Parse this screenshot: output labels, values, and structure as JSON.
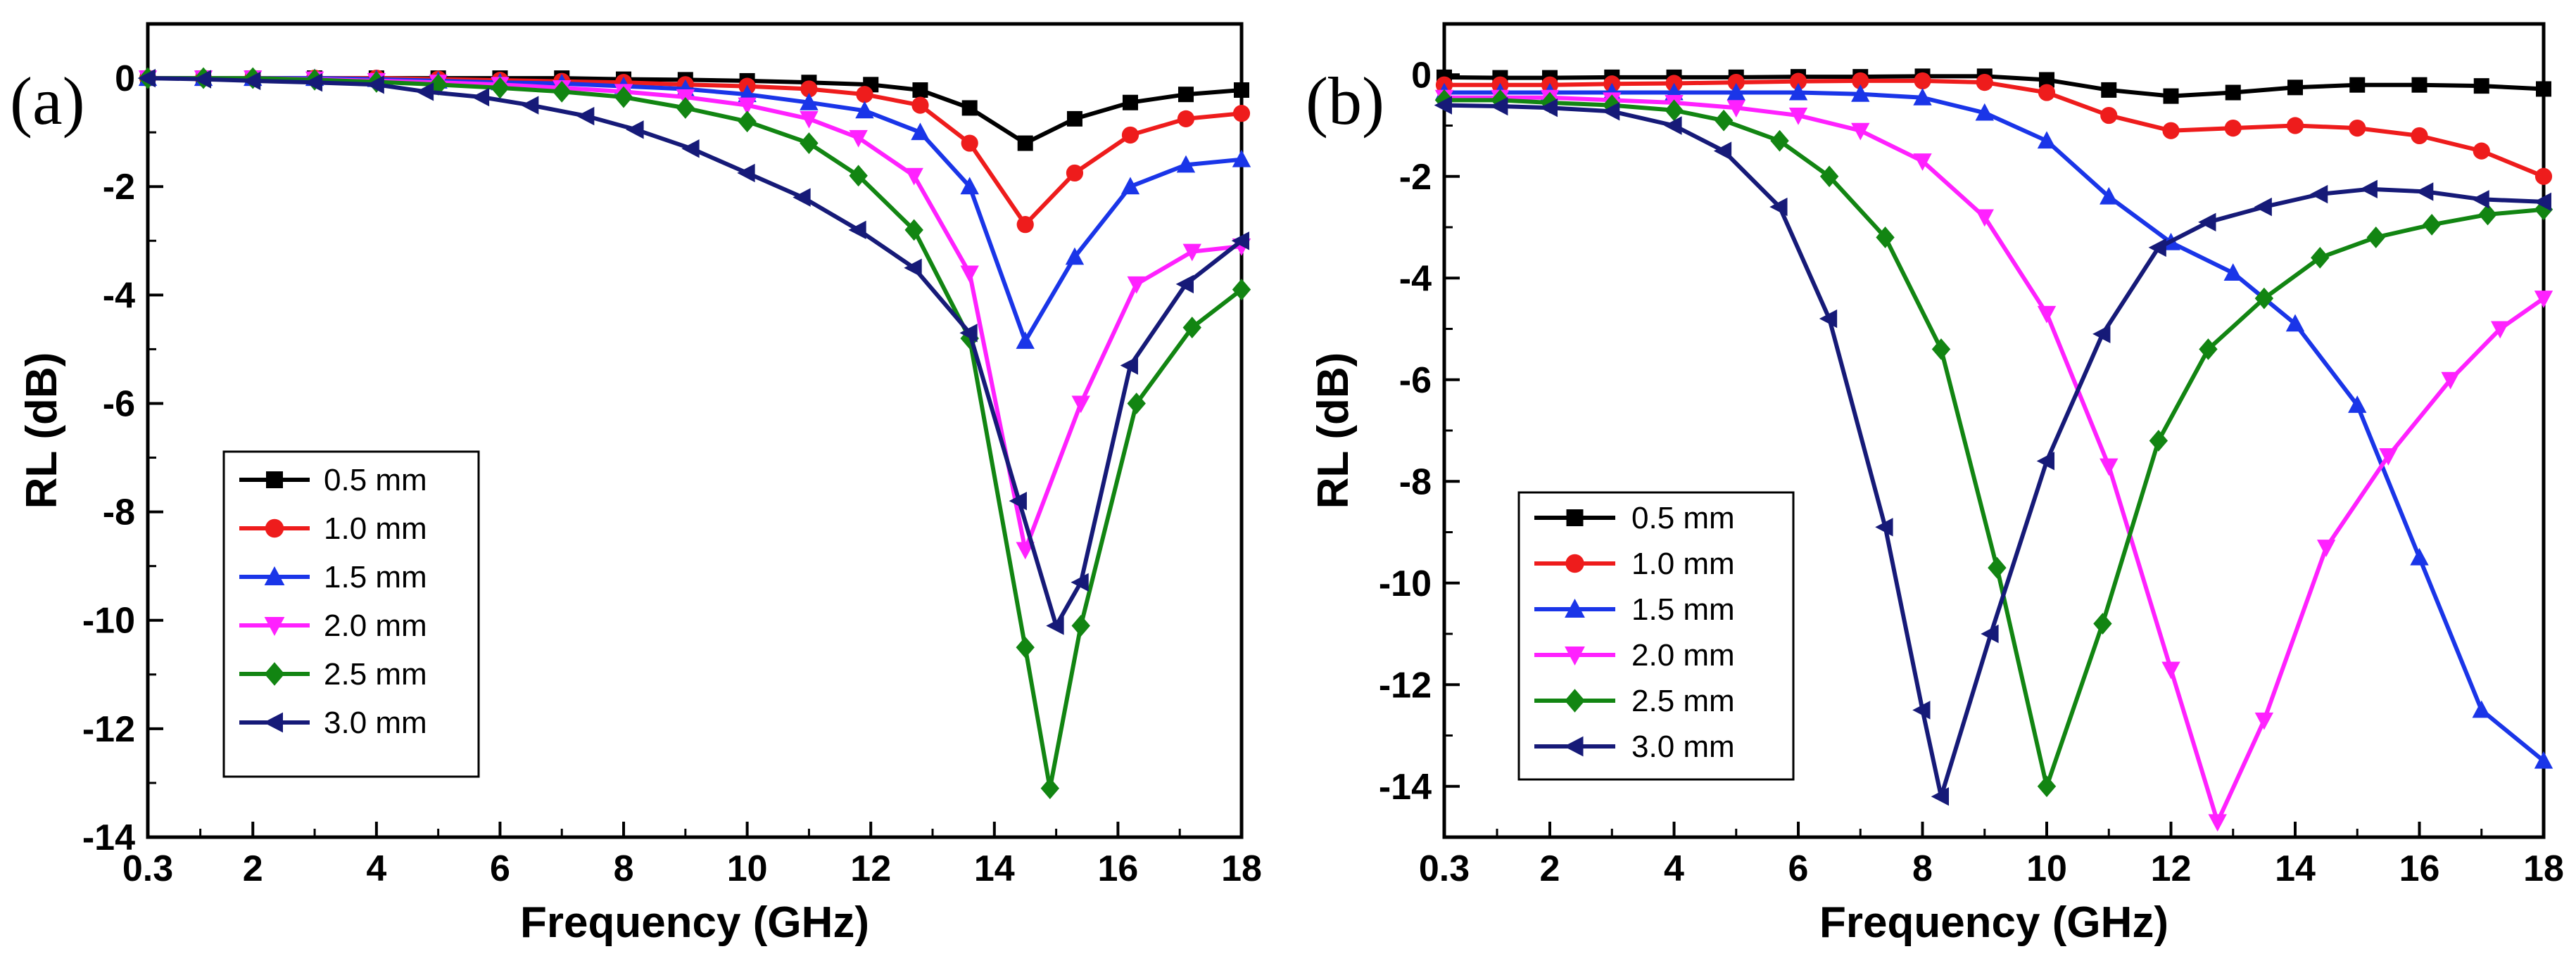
{
  "figure": {
    "panels": [
      "(a)",
      "(b)"
    ]
  },
  "colors": {
    "0.5 mm": "#000000",
    "1.0 mm": "#ee1c1c",
    "1.5 mm": "#1a35e8",
    "2.0 mm": "#ff21ff",
    "2.5 mm": "#128512",
    "3.0 mm": "#161a78"
  },
  "chart_data": [
    {
      "panel": "(a)",
      "type": "line",
      "title": "",
      "xlabel": "Frequency (GHz)",
      "ylabel": "RL (dB)",
      "xlim": [
        0.3,
        18
      ],
      "ylim": [
        -14,
        1
      ],
      "xticks": [
        0.3,
        2,
        4,
        6,
        8,
        10,
        12,
        14,
        16,
        18
      ],
      "xticklabels": [
        "0.3",
        "2",
        "4",
        "6",
        "8",
        "10",
        "12",
        "14",
        "16",
        "18"
      ],
      "yticks": [
        0,
        -2,
        -4,
        -6,
        -8,
        -10,
        -12,
        -14
      ],
      "yticklabels": [
        "0",
        "-2",
        "-4",
        "-6",
        "-8",
        "-10",
        "-12",
        "-14"
      ],
      "legend_position": "lower-left",
      "series": [
        {
          "name": "0.5 mm",
          "marker": "square",
          "x": [
            0.3,
            1.2,
            2.0,
            3.0,
            4.0,
            5.0,
            6.0,
            7.0,
            8.0,
            9.0,
            10.0,
            11.0,
            12.0,
            12.8,
            13.6,
            14.5,
            15.3,
            16.2,
            17.1,
            18.0
          ],
          "y": [
            0,
            0,
            0,
            0,
            0,
            0,
            0,
            0,
            -0.02,
            -0.03,
            -0.05,
            -0.08,
            -0.12,
            -0.22,
            -0.55,
            -1.2,
            -0.75,
            -0.45,
            -0.3,
            -0.22
          ]
        },
        {
          "name": "1.0 mm",
          "marker": "circle",
          "x": [
            0.3,
            1.2,
            2.0,
            3.0,
            4.0,
            5.0,
            6.0,
            7.0,
            8.0,
            9.0,
            10.0,
            11.0,
            11.9,
            12.8,
            13.6,
            14.5,
            15.3,
            16.2,
            17.1,
            18.0
          ],
          "y": [
            0,
            0,
            0,
            0,
            0,
            -0.02,
            -0.04,
            -0.06,
            -0.08,
            -0.12,
            -0.15,
            -0.2,
            -0.3,
            -0.5,
            -1.2,
            -2.7,
            -1.75,
            -1.05,
            -0.75,
            -0.65
          ]
        },
        {
          "name": "1.5 mm",
          "marker": "triangle-up",
          "x": [
            0.3,
            1.2,
            2.0,
            3.0,
            4.0,
            5.0,
            6.0,
            7.0,
            8.0,
            9.0,
            10.0,
            11.0,
            11.9,
            12.8,
            13.6,
            14.5,
            15.3,
            16.2,
            17.1,
            18.0
          ],
          "y": [
            0,
            0,
            0,
            0,
            -0.02,
            -0.05,
            -0.08,
            -0.1,
            -0.15,
            -0.2,
            -0.3,
            -0.45,
            -0.6,
            -1.0,
            -2.0,
            -4.85,
            -3.3,
            -2.0,
            -1.6,
            -1.5
          ]
        },
        {
          "name": "2.0 mm",
          "marker": "triangle-down",
          "x": [
            0.3,
            1.2,
            2.0,
            3.0,
            4.0,
            5.0,
            6.0,
            7.0,
            8.0,
            9.0,
            10.0,
            11.0,
            11.8,
            12.7,
            13.6,
            14.5,
            15.4,
            16.3,
            17.2,
            18.0
          ],
          "y": [
            0,
            0,
            0,
            -0.02,
            -0.05,
            -0.08,
            -0.12,
            -0.18,
            -0.25,
            -0.35,
            -0.5,
            -0.75,
            -1.1,
            -1.8,
            -3.6,
            -8.7,
            -6.0,
            -3.8,
            -3.2,
            -3.1
          ]
        },
        {
          "name": "2.5 mm",
          "marker": "diamond",
          "x": [
            0.3,
            1.2,
            2.0,
            3.0,
            4.0,
            5.0,
            6.0,
            7.0,
            8.0,
            9.0,
            10.0,
            11.0,
            11.8,
            12.7,
            13.6,
            14.5,
            14.9,
            15.4,
            16.3,
            17.2,
            18.0
          ],
          "y": [
            0,
            0,
            0,
            -0.03,
            -0.07,
            -0.12,
            -0.18,
            -0.25,
            -0.35,
            -0.55,
            -0.8,
            -1.2,
            -1.8,
            -2.8,
            -4.8,
            -10.5,
            -13.1,
            -10.1,
            -6.0,
            -4.6,
            -3.9
          ]
        },
        {
          "name": "3.0 mm",
          "marker": "triangle-left",
          "x": [
            0.3,
            1.2,
            2.0,
            3.0,
            4.0,
            4.8,
            5.7,
            6.5,
            7.4,
            8.2,
            9.1,
            10.0,
            10.9,
            11.8,
            12.7,
            13.6,
            14.4,
            15.0,
            15.4,
            16.2,
            17.1,
            18.0
          ],
          "y": [
            0,
            -0.02,
            -0.05,
            -0.08,
            -0.12,
            -0.25,
            -0.35,
            -0.5,
            -0.7,
            -0.95,
            -1.3,
            -1.75,
            -2.2,
            -2.8,
            -3.5,
            -4.7,
            -7.8,
            -10.1,
            -9.3,
            -5.3,
            -3.8,
            -3.0
          ]
        }
      ]
    },
    {
      "panel": "(b)",
      "type": "line",
      "title": "",
      "xlabel": "Frequency (GHz)",
      "ylabel": "RL (dB)",
      "xlim": [
        0.3,
        18
      ],
      "ylim": [
        -15,
        1
      ],
      "xticks": [
        0.3,
        2,
        4,
        6,
        8,
        10,
        12,
        14,
        16,
        18
      ],
      "xticklabels": [
        "0.3",
        "2",
        "4",
        "6",
        "8",
        "10",
        "12",
        "14",
        "16",
        "18"
      ],
      "yticks": [
        0,
        -2,
        -4,
        -6,
        -8,
        -10,
        -12,
        -14
      ],
      "yticklabels": [
        "0",
        "-2",
        "-4",
        "-6",
        "-8",
        "-10",
        "-12",
        "-14"
      ],
      "legend_position": "lower-left",
      "series": [
        {
          "name": "0.5 mm",
          "marker": "square",
          "x": [
            0.3,
            1.2,
            2.0,
            3.0,
            4.0,
            5.0,
            6.0,
            7.0,
            8.0,
            9.0,
            10.0,
            11.0,
            12.0,
            13.0,
            14.0,
            15.0,
            16.0,
            17.0,
            18.0
          ],
          "y": [
            -0.05,
            -0.06,
            -0.06,
            -0.05,
            -0.05,
            -0.05,
            -0.04,
            -0.04,
            -0.03,
            -0.03,
            -0.1,
            -0.3,
            -0.42,
            -0.35,
            -0.25,
            -0.2,
            -0.2,
            -0.22,
            -0.28
          ]
        },
        {
          "name": "1.0 mm",
          "marker": "circle",
          "x": [
            0.3,
            1.2,
            2.0,
            3.0,
            4.0,
            5.0,
            6.0,
            7.0,
            8.0,
            9.0,
            10.0,
            11.0,
            12.0,
            13.0,
            14.0,
            15.0,
            16.0,
            17.0,
            18.0
          ],
          "y": [
            -0.2,
            -0.2,
            -0.2,
            -0.18,
            -0.17,
            -0.15,
            -0.13,
            -0.12,
            -0.12,
            -0.15,
            -0.35,
            -0.8,
            -1.1,
            -1.05,
            -1.0,
            -1.05,
            -1.2,
            -1.5,
            -2.0
          ]
        },
        {
          "name": "1.5 mm",
          "marker": "triangle-up",
          "x": [
            0.3,
            1.2,
            2.0,
            3.0,
            4.0,
            5.0,
            6.0,
            7.0,
            8.0,
            9.0,
            10.0,
            11.0,
            12.0,
            13.0,
            14.0,
            15.0,
            16.0,
            17.0,
            18.0
          ],
          "y": [
            -0.35,
            -0.35,
            -0.35,
            -0.35,
            -0.35,
            -0.35,
            -0.35,
            -0.38,
            -0.45,
            -0.75,
            -1.3,
            -2.4,
            -3.3,
            -3.9,
            -4.9,
            -6.5,
            -9.5,
            -12.5,
            -13.5
          ]
        },
        {
          "name": "2.0 mm",
          "marker": "triangle-down",
          "x": [
            0.3,
            1.2,
            2.0,
            3.0,
            4.0,
            5.0,
            6.0,
            7.0,
            8.0,
            9.0,
            10.0,
            11.0,
            12.0,
            12.75,
            13.5,
            14.5,
            15.5,
            16.5,
            17.3,
            18.0
          ],
          "y": [
            -0.45,
            -0.45,
            -0.45,
            -0.5,
            -0.55,
            -0.65,
            -0.8,
            -1.1,
            -1.7,
            -2.8,
            -4.7,
            -7.7,
            -11.7,
            -14.7,
            -12.7,
            -9.3,
            -7.5,
            -6.0,
            -5.0,
            -4.4
          ]
        },
        {
          "name": "2.5 mm",
          "marker": "diamond",
          "x": [
            0.3,
            1.2,
            2.0,
            3.0,
            4.0,
            4.8,
            5.7,
            6.5,
            7.4,
            8.3,
            9.2,
            10.0,
            10.9,
            11.8,
            12.6,
            13.5,
            14.4,
            15.3,
            16.2,
            17.1,
            18.0
          ],
          "y": [
            -0.5,
            -0.5,
            -0.55,
            -0.6,
            -0.7,
            -0.9,
            -1.3,
            -2.0,
            -3.2,
            -5.4,
            -9.7,
            -14.0,
            -10.8,
            -7.2,
            -5.4,
            -4.4,
            -3.6,
            -3.2,
            -2.95,
            -2.75,
            -2.65
          ]
        },
        {
          "name": "3.0 mm",
          "marker": "triangle-left",
          "x": [
            0.3,
            1.2,
            2.0,
            3.0,
            4.0,
            4.8,
            5.7,
            6.5,
            7.4,
            8.0,
            8.3,
            9.1,
            10.0,
            10.9,
            11.8,
            12.6,
            13.5,
            14.4,
            15.2,
            16.1,
            17.0,
            18.0
          ],
          "y": [
            -0.6,
            -0.62,
            -0.65,
            -0.72,
            -1.0,
            -1.5,
            -2.6,
            -4.8,
            -8.9,
            -12.5,
            -14.2,
            -11.0,
            -7.6,
            -5.1,
            -3.4,
            -2.9,
            -2.6,
            -2.35,
            -2.25,
            -2.3,
            -2.45,
            -2.5
          ]
        }
      ]
    }
  ]
}
